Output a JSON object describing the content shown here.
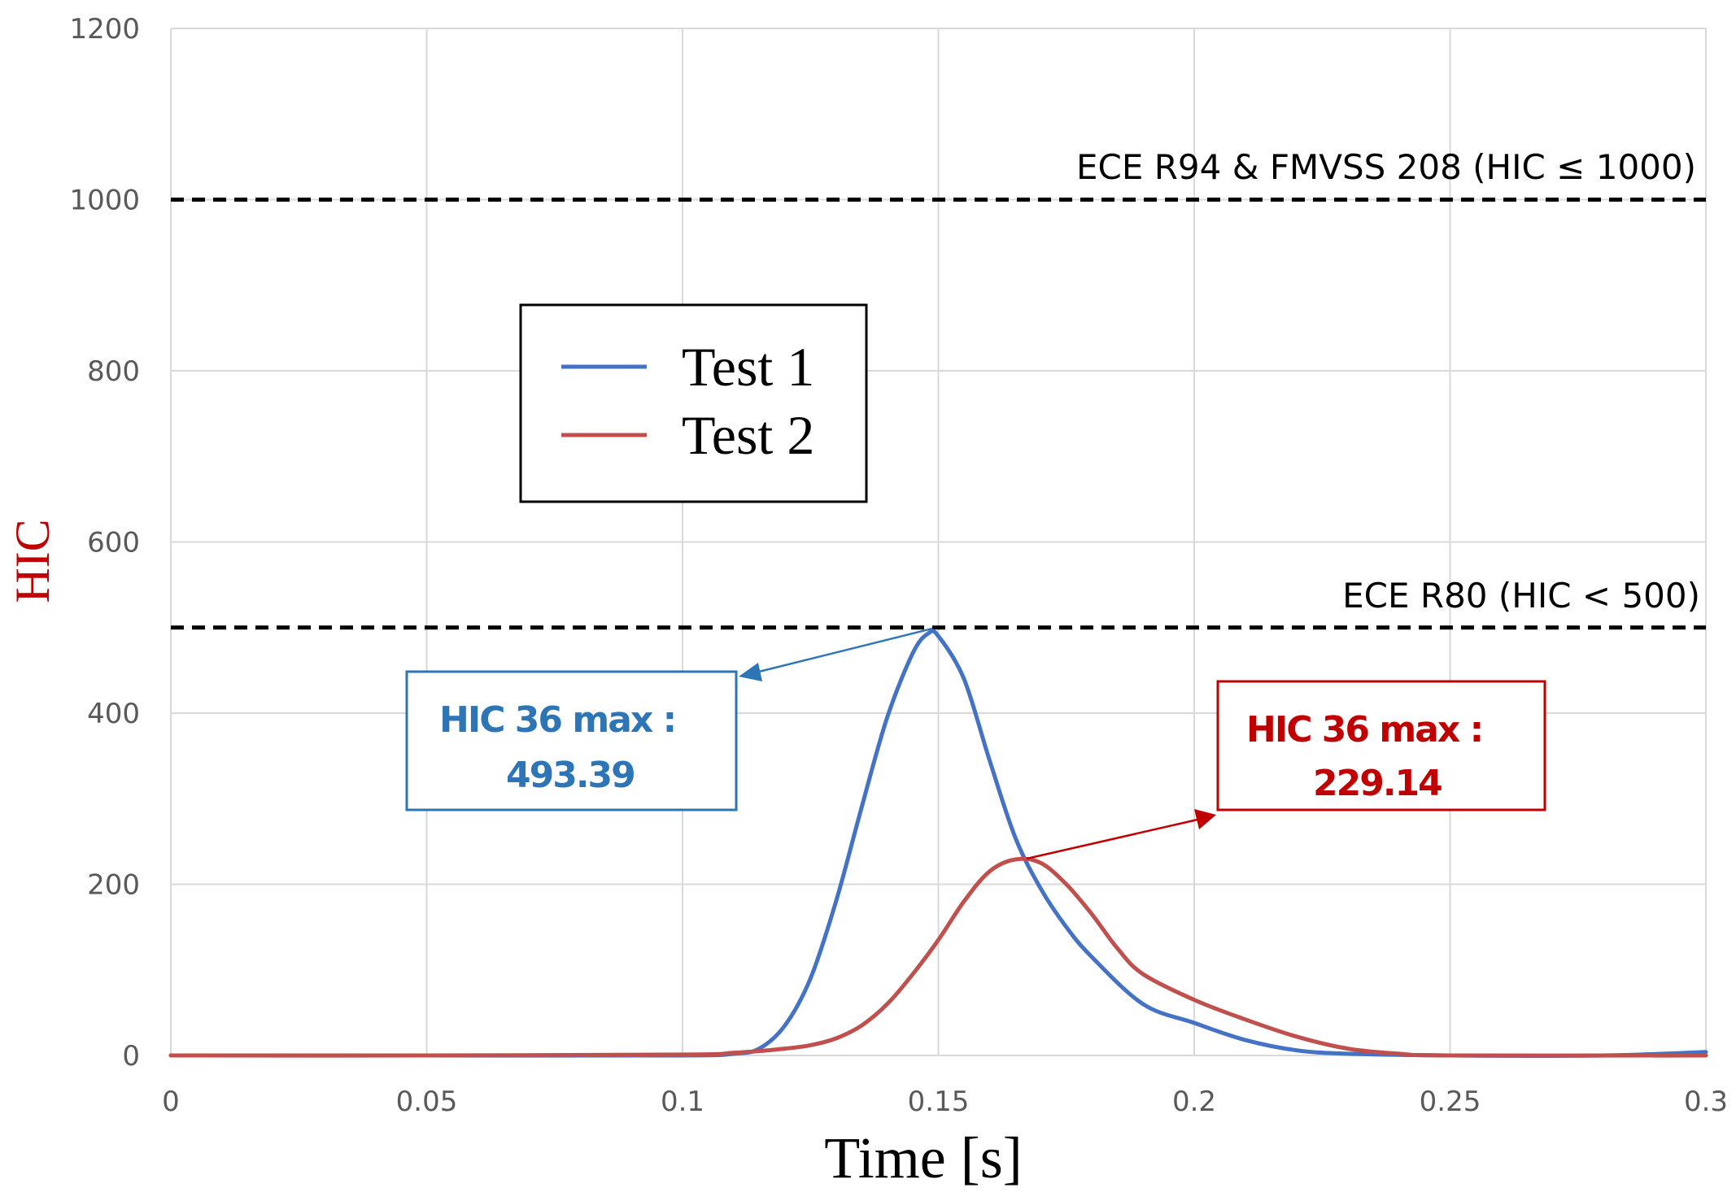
{
  "chart_data": {
    "type": "line",
    "title": "",
    "xlabel": "Time [s]",
    "ylabel": "HIC",
    "xlim": [
      0,
      0.3
    ],
    "ylim": [
      0,
      1200
    ],
    "x_ticks": [
      0,
      0.05,
      0.1,
      0.15,
      0.2,
      0.25,
      0.3
    ],
    "x_tick_labels": [
      "0",
      "0.05",
      "0.1",
      "0.15",
      "0.2",
      "0.25",
      "0.3"
    ],
    "y_ticks": [
      0,
      200,
      400,
      600,
      800,
      1000,
      1200
    ],
    "y_tick_labels": [
      "0",
      "200",
      "400",
      "600",
      "800",
      "1000",
      "1200"
    ],
    "grid": true,
    "legend_position": "upper-left",
    "reference_lines": [
      {
        "name": "ref-line-r94",
        "y": 1000,
        "label": "ECE R94 & FMVSS 208 (HIC ≤ 1000)"
      },
      {
        "name": "ref-line-r80",
        "y": 500,
        "label": "ECE R80 (HIC < 500)"
      }
    ],
    "series": [
      {
        "name": "Test 1",
        "color": "#4472c4",
        "points": [
          [
            0,
            0
          ],
          [
            0.05,
            0
          ],
          [
            0.1,
            0
          ],
          [
            0.11,
            2
          ],
          [
            0.115,
            8
          ],
          [
            0.12,
            35
          ],
          [
            0.125,
            90
          ],
          [
            0.13,
            180
          ],
          [
            0.135,
            290
          ],
          [
            0.14,
            395
          ],
          [
            0.145,
            470
          ],
          [
            0.148,
            493
          ],
          [
            0.15,
            490
          ],
          [
            0.155,
            440
          ],
          [
            0.16,
            345
          ],
          [
            0.165,
            255
          ],
          [
            0.17,
            195
          ],
          [
            0.175,
            150
          ],
          [
            0.18,
            115
          ],
          [
            0.19,
            60
          ],
          [
            0.2,
            38
          ],
          [
            0.21,
            18
          ],
          [
            0.22,
            6
          ],
          [
            0.23,
            2
          ],
          [
            0.25,
            0
          ],
          [
            0.28,
            0
          ],
          [
            0.3,
            4
          ]
        ]
      },
      {
        "name": "Test 2",
        "color": "#c0504d",
        "points": [
          [
            0,
            0
          ],
          [
            0.05,
            0
          ],
          [
            0.1,
            1
          ],
          [
            0.11,
            3
          ],
          [
            0.12,
            8
          ],
          [
            0.125,
            12
          ],
          [
            0.13,
            20
          ],
          [
            0.135,
            35
          ],
          [
            0.14,
            60
          ],
          [
            0.145,
            95
          ],
          [
            0.15,
            135
          ],
          [
            0.155,
            180
          ],
          [
            0.16,
            215
          ],
          [
            0.165,
            229
          ],
          [
            0.17,
            225
          ],
          [
            0.175,
            200
          ],
          [
            0.18,
            165
          ],
          [
            0.185,
            125
          ],
          [
            0.19,
            95
          ],
          [
            0.2,
            65
          ],
          [
            0.21,
            42
          ],
          [
            0.22,
            22
          ],
          [
            0.23,
            8
          ],
          [
            0.24,
            2
          ],
          [
            0.25,
            0
          ],
          [
            0.3,
            0
          ]
        ]
      }
    ],
    "annotations": [
      {
        "name": "annotation-test-1",
        "line1": "HIC 36 max :",
        "line2": "493.39",
        "color": "#2e75b6",
        "peak_x": 0.148,
        "peak_y": 493
      },
      {
        "name": "annotation-test-2",
        "line1": "HIC 36 max :",
        "line2": "229.14",
        "color": "#c00000",
        "peak_x": 0.166,
        "peak_y": 229
      }
    ]
  },
  "colors": {
    "ylabel": "#c00000",
    "grid": "#d9d9d9",
    "reference_line": "#000000"
  }
}
